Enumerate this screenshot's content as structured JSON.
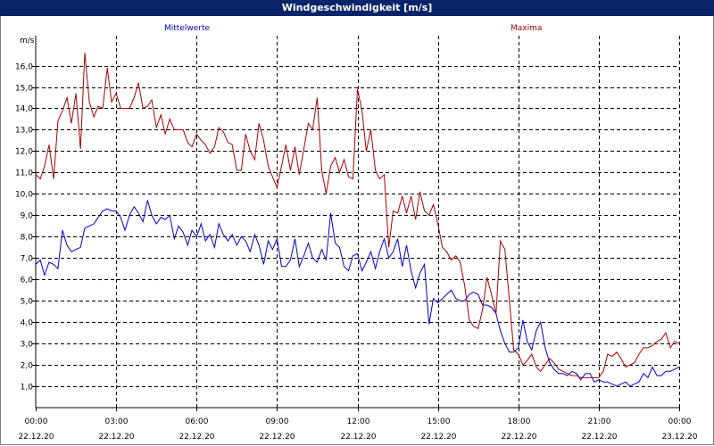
{
  "window": {
    "title": "Windgeschwindigkeit [m/s]"
  },
  "chart_data": {
    "type": "line",
    "title": "Windgeschwindigkeit [m/s]",
    "ylabel": "m/s",
    "ylim": [
      0,
      17.4
    ],
    "xlim": [
      0,
      24
    ],
    "grid": true,
    "y_ticks": [
      "1,0",
      "2,0",
      "3,0",
      "4,0",
      "5,0",
      "6,0",
      "7,0",
      "8,0",
      "9,0",
      "10,0",
      "11,0",
      "12,0",
      "13,0",
      "14,0",
      "15,0",
      "16,0"
    ],
    "y_tick_values": [
      1,
      2,
      3,
      4,
      5,
      6,
      7,
      8,
      9,
      10,
      11,
      12,
      13,
      14,
      15,
      16
    ],
    "x_ticks": [
      {
        "x": 0,
        "time": "00:00",
        "date": "22.12.20"
      },
      {
        "x": 3,
        "time": "03:00",
        "date": "22.12.20"
      },
      {
        "x": 6,
        "time": "06:00",
        "date": "22.12.20"
      },
      {
        "x": 9,
        "time": "09:00",
        "date": "22.12.20"
      },
      {
        "x": 12,
        "time": "12:00",
        "date": "22.12.20"
      },
      {
        "x": 15,
        "time": "15:00",
        "date": "22.12.20"
      },
      {
        "x": 18,
        "time": "18:00",
        "date": "22.12.20"
      },
      {
        "x": 21,
        "time": "21:00",
        "date": "22.12.20"
      },
      {
        "x": 24,
        "time": "00:00",
        "date": "23.12.20"
      }
    ],
    "series": [
      {
        "name": "Mittelwerte",
        "color": "#0000cc",
        "legend_position": "top-left",
        "points": [
          [
            0.0,
            6.7
          ],
          [
            0.17,
            6.9
          ],
          [
            0.33,
            6.2
          ],
          [
            0.5,
            6.8
          ],
          [
            0.67,
            6.7
          ],
          [
            0.83,
            6.5
          ],
          [
            1.0,
            8.3
          ],
          [
            1.17,
            7.6
          ],
          [
            1.33,
            7.3
          ],
          [
            1.5,
            7.4
          ],
          [
            1.67,
            7.5
          ],
          [
            1.83,
            8.4
          ],
          [
            2.0,
            8.5
          ],
          [
            2.17,
            8.6
          ],
          [
            2.33,
            8.9
          ],
          [
            2.5,
            9.2
          ],
          [
            2.67,
            9.3
          ],
          [
            2.83,
            9.2
          ],
          [
            3.0,
            9.2
          ],
          [
            3.17,
            8.9
          ],
          [
            3.33,
            8.3
          ],
          [
            3.5,
            9.0
          ],
          [
            3.67,
            9.4
          ],
          [
            3.83,
            9.1
          ],
          [
            4.0,
            8.7
          ],
          [
            4.17,
            9.7
          ],
          [
            4.33,
            9.0
          ],
          [
            4.5,
            8.6
          ],
          [
            4.67,
            8.9
          ],
          [
            4.83,
            8.8
          ],
          [
            5.0,
            9.0
          ],
          [
            5.17,
            7.9
          ],
          [
            5.33,
            8.5
          ],
          [
            5.5,
            8.2
          ],
          [
            5.67,
            7.6
          ],
          [
            5.83,
            8.3
          ],
          [
            6.0,
            8.0
          ],
          [
            6.17,
            8.6
          ],
          [
            6.33,
            7.8
          ],
          [
            6.5,
            8.1
          ],
          [
            6.67,
            7.5
          ],
          [
            6.83,
            8.6
          ],
          [
            7.0,
            8.1
          ],
          [
            7.17,
            7.8
          ],
          [
            7.33,
            8.1
          ],
          [
            7.5,
            7.6
          ],
          [
            7.67,
            8.0
          ],
          [
            7.83,
            7.8
          ],
          [
            8.0,
            7.3
          ],
          [
            8.17,
            8.1
          ],
          [
            8.33,
            7.6
          ],
          [
            8.5,
            6.7
          ],
          [
            8.67,
            7.8
          ],
          [
            8.83,
            7.4
          ],
          [
            9.0,
            7.9
          ],
          [
            9.17,
            6.6
          ],
          [
            9.33,
            6.6
          ],
          [
            9.5,
            6.9
          ],
          [
            9.67,
            7.9
          ],
          [
            9.83,
            6.6
          ],
          [
            10.0,
            7.1
          ],
          [
            10.17,
            7.7
          ],
          [
            10.33,
            7.0
          ],
          [
            10.5,
            6.8
          ],
          [
            10.67,
            7.4
          ],
          [
            10.83,
            6.9
          ],
          [
            11.0,
            9.1
          ],
          [
            11.17,
            7.7
          ],
          [
            11.33,
            7.5
          ],
          [
            11.5,
            6.6
          ],
          [
            11.67,
            6.4
          ],
          [
            11.83,
            7.1
          ],
          [
            12.0,
            7.2
          ],
          [
            12.17,
            6.4
          ],
          [
            12.33,
            6.8
          ],
          [
            12.5,
            7.3
          ],
          [
            12.67,
            6.5
          ],
          [
            12.83,
            7.3
          ],
          [
            13.0,
            7.9
          ],
          [
            13.17,
            7.0
          ],
          [
            13.33,
            7.3
          ],
          [
            13.5,
            7.9
          ],
          [
            13.67,
            6.6
          ],
          [
            13.83,
            7.6
          ],
          [
            14.0,
            6.4
          ],
          [
            14.17,
            5.6
          ],
          [
            14.33,
            6.3
          ],
          [
            14.5,
            6.7
          ],
          [
            14.67,
            3.9
          ],
          [
            14.83,
            5.1
          ],
          [
            15.0,
            4.9
          ],
          [
            15.17,
            5.1
          ],
          [
            15.33,
            5.3
          ],
          [
            15.5,
            5.5
          ],
          [
            15.67,
            5.1
          ],
          [
            15.83,
            5.0
          ],
          [
            16.0,
            5.0
          ],
          [
            16.17,
            5.3
          ],
          [
            16.33,
            5.4
          ],
          [
            16.5,
            5.3
          ],
          [
            16.67,
            4.8
          ],
          [
            16.83,
            4.8
          ],
          [
            17.0,
            4.7
          ],
          [
            17.17,
            4.4
          ],
          [
            17.33,
            3.6
          ],
          [
            17.5,
            3.0
          ],
          [
            17.67,
            2.6
          ],
          [
            17.83,
            2.6
          ],
          [
            18.0,
            2.8
          ],
          [
            18.17,
            4.1
          ],
          [
            18.33,
            3.1
          ],
          [
            18.5,
            2.7
          ],
          [
            18.67,
            3.6
          ],
          [
            18.83,
            4.0
          ],
          [
            19.0,
            2.8
          ],
          [
            19.17,
            2.1
          ],
          [
            19.33,
            1.8
          ],
          [
            19.5,
            1.6
          ],
          [
            19.67,
            1.6
          ],
          [
            19.83,
            1.5
          ],
          [
            20.0,
            1.7
          ],
          [
            20.17,
            1.6
          ],
          [
            20.33,
            1.3
          ],
          [
            20.5,
            1.6
          ],
          [
            20.67,
            1.6
          ],
          [
            20.83,
            1.2
          ],
          [
            21.0,
            1.3
          ],
          [
            21.17,
            1.2
          ],
          [
            21.33,
            1.2
          ],
          [
            21.5,
            1.1
          ],
          [
            21.67,
            1.0
          ],
          [
            21.83,
            1.1
          ],
          [
            22.0,
            1.2
          ],
          [
            22.17,
            1.0
          ],
          [
            22.33,
            1.1
          ],
          [
            22.5,
            1.2
          ],
          [
            22.67,
            1.6
          ],
          [
            22.83,
            1.4
          ],
          [
            23.0,
            1.9
          ],
          [
            23.17,
            1.5
          ],
          [
            23.33,
            1.5
          ],
          [
            23.5,
            1.7
          ],
          [
            23.67,
            1.7
          ],
          [
            23.83,
            1.8
          ],
          [
            24.0,
            1.9
          ]
        ]
      },
      {
        "name": "Maxima",
        "color": "#aa0000",
        "legend_position": "top-right",
        "points": [
          [
            0.0,
            10.9
          ],
          [
            0.17,
            10.7
          ],
          [
            0.33,
            11.3
          ],
          [
            0.5,
            12.3
          ],
          [
            0.67,
            10.7
          ],
          [
            0.83,
            13.4
          ],
          [
            1.0,
            13.9
          ],
          [
            1.17,
            14.5
          ],
          [
            1.33,
            13.3
          ],
          [
            1.5,
            14.7
          ],
          [
            1.67,
            12.1
          ],
          [
            1.83,
            16.6
          ],
          [
            2.0,
            14.3
          ],
          [
            2.17,
            13.6
          ],
          [
            2.33,
            14.1
          ],
          [
            2.5,
            14.0
          ],
          [
            2.67,
            15.9
          ],
          [
            2.83,
            14.3
          ],
          [
            3.0,
            14.7
          ],
          [
            3.17,
            14.0
          ],
          [
            3.33,
            14.0
          ],
          [
            3.5,
            14.0
          ],
          [
            3.67,
            14.5
          ],
          [
            3.83,
            15.2
          ],
          [
            4.0,
            14.0
          ],
          [
            4.17,
            14.1
          ],
          [
            4.33,
            14.4
          ],
          [
            4.5,
            13.1
          ],
          [
            4.67,
            13.7
          ],
          [
            4.83,
            12.8
          ],
          [
            5.0,
            13.5
          ],
          [
            5.17,
            13.0
          ],
          [
            5.33,
            13.0
          ],
          [
            5.5,
            13.0
          ],
          [
            5.67,
            12.4
          ],
          [
            5.83,
            12.2
          ],
          [
            6.0,
            12.8
          ],
          [
            6.17,
            12.5
          ],
          [
            6.33,
            12.3
          ],
          [
            6.5,
            11.9
          ],
          [
            6.67,
            12.2
          ],
          [
            6.83,
            13.1
          ],
          [
            7.0,
            12.9
          ],
          [
            7.17,
            12.4
          ],
          [
            7.33,
            12.3
          ],
          [
            7.5,
            11.1
          ],
          [
            7.67,
            11.1
          ],
          [
            7.83,
            12.8
          ],
          [
            8.0,
            12.0
          ],
          [
            8.17,
            11.6
          ],
          [
            8.33,
            13.3
          ],
          [
            8.5,
            12.5
          ],
          [
            8.67,
            11.3
          ],
          [
            8.83,
            10.8
          ],
          [
            9.0,
            10.3
          ],
          [
            9.17,
            11.3
          ],
          [
            9.33,
            12.3
          ],
          [
            9.5,
            11.1
          ],
          [
            9.67,
            12.2
          ],
          [
            9.83,
            10.9
          ],
          [
            10.0,
            12.1
          ],
          [
            10.17,
            13.3
          ],
          [
            10.33,
            13.0
          ],
          [
            10.5,
            14.5
          ],
          [
            10.67,
            11.1
          ],
          [
            10.83,
            10.0
          ],
          [
            11.0,
            11.3
          ],
          [
            11.17,
            11.7
          ],
          [
            11.33,
            11.0
          ],
          [
            11.5,
            11.6
          ],
          [
            11.67,
            10.8
          ],
          [
            11.83,
            10.7
          ],
          [
            12.0,
            14.9
          ],
          [
            12.17,
            13.9
          ],
          [
            12.33,
            12.0
          ],
          [
            12.5,
            13.0
          ],
          [
            12.67,
            11.1
          ],
          [
            12.83,
            10.7
          ],
          [
            13.0,
            10.9
          ],
          [
            13.17,
            7.5
          ],
          [
            13.33,
            9.2
          ],
          [
            13.5,
            9.1
          ],
          [
            13.67,
            9.9
          ],
          [
            13.83,
            9.1
          ],
          [
            14.0,
            9.9
          ],
          [
            14.17,
            8.8
          ],
          [
            14.33,
            10.1
          ],
          [
            14.5,
            9.2
          ],
          [
            14.67,
            9.0
          ],
          [
            14.83,
            9.5
          ],
          [
            15.0,
            8.6
          ],
          [
            15.17,
            7.5
          ],
          [
            15.33,
            7.3
          ],
          [
            15.5,
            6.9
          ],
          [
            15.67,
            7.1
          ],
          [
            15.83,
            6.8
          ],
          [
            16.0,
            5.7
          ],
          [
            16.17,
            4.1
          ],
          [
            16.33,
            3.8
          ],
          [
            16.5,
            3.7
          ],
          [
            16.67,
            4.6
          ],
          [
            16.83,
            6.1
          ],
          [
            17.0,
            5.3
          ],
          [
            17.17,
            4.4
          ],
          [
            17.33,
            7.8
          ],
          [
            17.5,
            7.4
          ],
          [
            17.67,
            5.0
          ],
          [
            17.83,
            2.7
          ],
          [
            18.0,
            2.5
          ],
          [
            18.17,
            2.0
          ],
          [
            18.33,
            2.2
          ],
          [
            18.5,
            2.5
          ],
          [
            18.67,
            1.9
          ],
          [
            18.83,
            1.7
          ],
          [
            19.0,
            2.0
          ],
          [
            19.17,
            2.3
          ],
          [
            19.33,
            2.1
          ],
          [
            19.5,
            1.8
          ],
          [
            19.67,
            1.7
          ],
          [
            19.83,
            1.6
          ],
          [
            20.0,
            1.5
          ],
          [
            20.17,
            1.5
          ],
          [
            20.33,
            1.4
          ],
          [
            20.5,
            1.4
          ],
          [
            20.67,
            1.4
          ],
          [
            20.83,
            1.4
          ],
          [
            21.0,
            1.4
          ],
          [
            21.17,
            1.7
          ],
          [
            21.33,
            2.5
          ],
          [
            21.5,
            2.4
          ],
          [
            21.67,
            2.6
          ],
          [
            21.83,
            2.3
          ],
          [
            22.0,
            1.9
          ],
          [
            22.17,
            2.0
          ],
          [
            22.33,
            2.1
          ],
          [
            22.5,
            2.5
          ],
          [
            22.67,
            2.8
          ],
          [
            22.83,
            2.8
          ],
          [
            23.0,
            2.9
          ],
          [
            23.17,
            3.1
          ],
          [
            23.33,
            3.2
          ],
          [
            23.5,
            3.5
          ],
          [
            23.67,
            2.8
          ],
          [
            23.83,
            3.1
          ],
          [
            24.0,
            3.0
          ]
        ]
      }
    ]
  }
}
